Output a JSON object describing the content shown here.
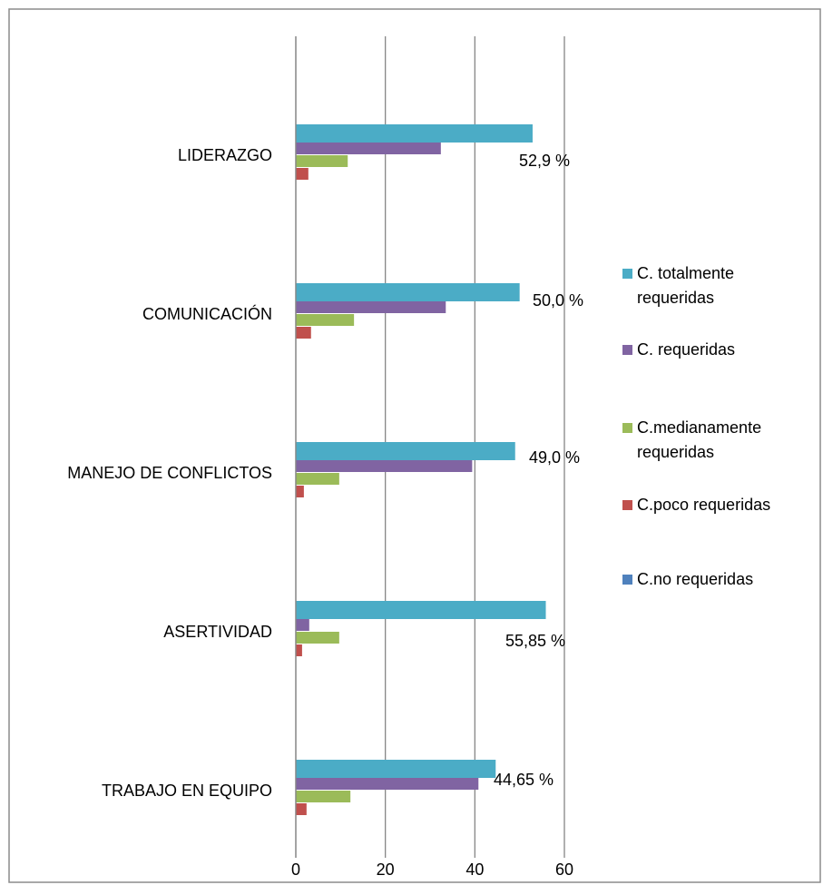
{
  "chart_data": {
    "type": "bar",
    "orientation": "horizontal",
    "categories": [
      "LIDERAZGO",
      "COMUNICACIÓN",
      "MANEJO DE CONFLICTOS",
      "ASERTIVIDAD",
      "TRABAJO EN EQUIPO"
    ],
    "series": [
      {
        "name": "C. totalmente requeridas",
        "color": "#4bacc6",
        "values": [
          52.9,
          50.0,
          49.0,
          55.85,
          44.65
        ],
        "value_labels": [
          "52,9 %",
          "50,0 %",
          "49,0 %",
          "55,85 %",
          "44,65 %"
        ]
      },
      {
        "name": "C. requeridas",
        "color": "#8064a2",
        "values": [
          32.4,
          33.5,
          39.4,
          3.0,
          40.8
        ]
      },
      {
        "name": "C.medianamente requeridas",
        "color": "#9bbb59",
        "values": [
          11.6,
          13.0,
          9.7,
          9.7,
          12.2
        ]
      },
      {
        "name": "C.poco requeridas",
        "color": "#c0504d",
        "values": [
          2.8,
          3.4,
          1.8,
          1.4,
          2.4
        ]
      },
      {
        "name": "C.no requeridas",
        "color": "#4f81bd",
        "values": [
          0,
          0,
          0,
          0,
          0
        ]
      }
    ],
    "xlim": [
      0,
      60
    ],
    "xticks": [
      0,
      20,
      40,
      60
    ],
    "grid": true,
    "legend": "right"
  }
}
